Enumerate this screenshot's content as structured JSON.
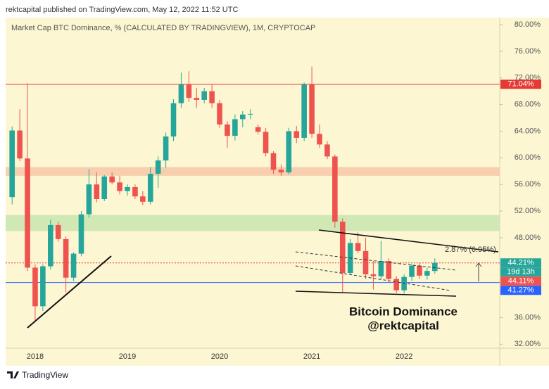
{
  "chart_data": {
    "type": "candlestick",
    "header": "rektcapital published on TradingView.com, May 12, 2022 11:52 UTC",
    "title": "Market Cap BTC Dominance, % (CALCULATED BY TRADINGVIEW), 1M, CRYPTOCAP",
    "footer": "TradingView",
    "categories": [
      null,
      null,
      null,
      "2018",
      null,
      null,
      null,
      null,
      null,
      null,
      null,
      null,
      null,
      null,
      null,
      "2019",
      null,
      null,
      null,
      null,
      null,
      null,
      null,
      null,
      null,
      null,
      null,
      "2020",
      null,
      null,
      null,
      null,
      null,
      null,
      null,
      null,
      null,
      null,
      null,
      "2021",
      null,
      null,
      null,
      null,
      null,
      null,
      null,
      null,
      null,
      null,
      null,
      "2022",
      null,
      null,
      null,
      null
    ],
    "open": [
      54.1,
      64.1,
      59.9,
      43.5,
      37.7,
      43.7,
      49.9,
      47.8,
      42.0,
      45.6,
      51.5,
      56.0,
      53.8,
      57.2,
      56.3,
      55.0,
      55.6,
      54.2,
      53.4,
      57.6,
      59.6,
      63.2,
      68.2,
      71.0,
      69.0,
      68.7,
      70.0,
      68.2,
      65.0,
      63.3,
      65.8,
      66.5,
      64.6,
      63.9,
      60.7,
      58.2,
      57.8,
      64.0,
      63.0,
      71.0,
      63.6,
      62.0,
      60.2,
      50.4,
      42.7,
      47.2,
      46.0,
      42.5,
      42.2,
      44.5,
      41.8,
      40.1,
      42.1,
      43.8,
      42.3,
      43.0
    ],
    "high": [
      64.7,
      67.3,
      71.2,
      44.0,
      44.0,
      50.7,
      50.4,
      48.2,
      45.8,
      52.0,
      58.3,
      57.8,
      57.4,
      57.8,
      57.3,
      56.0,
      56.0,
      55.0,
      58.6,
      60.2,
      63.8,
      68.8,
      72.8,
      73.0,
      70.5,
      70.5,
      71.0,
      68.7,
      65.5,
      66.5,
      67.0,
      67.3,
      65.0,
      64.5,
      61.0,
      59.0,
      64.5,
      64.8,
      71.3,
      73.7,
      65.0,
      62.5,
      60.5,
      50.9,
      47.8,
      48.8,
      48.0,
      44.5,
      47.5,
      44.9,
      42.2,
      42.5,
      44.1,
      44.2,
      43.5,
      44.9
    ],
    "low": [
      53.0,
      59.5,
      43.0,
      35.6,
      37.0,
      43.2,
      47.4,
      39.8,
      41.5,
      45.2,
      51.0,
      53.3,
      53.5,
      56.0,
      54.5,
      54.3,
      53.8,
      52.9,
      53.0,
      55.5,
      58.5,
      62.5,
      67.5,
      68.4,
      67.5,
      68.2,
      67.5,
      64.5,
      61.5,
      62.6,
      64.6,
      65.8,
      63.5,
      60.2,
      57.6,
      57.3,
      57.5,
      62.2,
      62.5,
      63.0,
      61.5,
      59.8,
      49.5,
      39.8,
      42.4,
      45.7,
      41.8,
      40.2,
      41.8,
      41.3,
      39.7,
      39.6,
      41.5,
      41.8,
      41.7,
      42.6
    ],
    "close": [
      64.1,
      59.9,
      43.5,
      37.7,
      43.7,
      49.9,
      47.8,
      42.0,
      45.6,
      51.5,
      56.0,
      53.8,
      57.2,
      56.3,
      55.0,
      55.6,
      54.2,
      53.4,
      57.6,
      59.6,
      63.2,
      68.2,
      71.0,
      69.0,
      68.7,
      70.0,
      68.2,
      65.0,
      63.3,
      65.8,
      66.5,
      66.6,
      63.9,
      60.7,
      58.2,
      57.8,
      64.0,
      63.0,
      71.0,
      63.6,
      62.0,
      60.2,
      50.4,
      42.7,
      47.2,
      46.0,
      42.5,
      42.2,
      44.5,
      41.8,
      40.1,
      42.1,
      43.8,
      42.3,
      43.0,
      44.21
    ],
    "up_color": "#26a69a",
    "down_color": "#ef5350",
    "ylim": [
      31.4,
      81.06
    ],
    "yticks": [
      {
        "value": 32,
        "label": "32.00%"
      },
      {
        "value": 36,
        "label": "36.00%"
      },
      {
        "value": 40,
        "label": "40.00%"
      },
      {
        "value": 44,
        "label": "44.00%"
      },
      {
        "value": 48,
        "label": "48.00%"
      },
      {
        "value": 52,
        "label": "52.00%"
      },
      {
        "value": 56,
        "label": "56.00%"
      },
      {
        "value": 60,
        "label": "60.00%"
      },
      {
        "value": 64,
        "label": "64.00%"
      },
      {
        "value": 68,
        "label": "68.00%"
      },
      {
        "value": 72,
        "label": "72.00%"
      },
      {
        "value": 76,
        "label": "76.00%"
      },
      {
        "value": 80,
        "label": "80.00%"
      }
    ],
    "zones": [
      {
        "from": 57.3,
        "to": 58.6,
        "color": "#f8cfae"
      },
      {
        "from": 49.0,
        "to": 51.4,
        "color": "#cfe8b4"
      }
    ],
    "levels": [
      {
        "value": 71.04,
        "label": "71.04%",
        "color": "#e53935",
        "style": "solid"
      },
      {
        "value": 44.21,
        "label": "44.21%",
        "color": "#26a69a",
        "line_color": "#e53935",
        "style": "dotted"
      },
      {
        "value": 44.11,
        "label": "44.11%",
        "color": "#ef5350",
        "style": "none"
      },
      {
        "value": 41.27,
        "label": "41.27%",
        "color": "#2962ff",
        "style": "solid"
      }
    ],
    "countdown": "19d 13h",
    "annotations": [
      "2.87% (6.95%)",
      "Bitcoin Dominance",
      "@rektcapital"
    ]
  }
}
